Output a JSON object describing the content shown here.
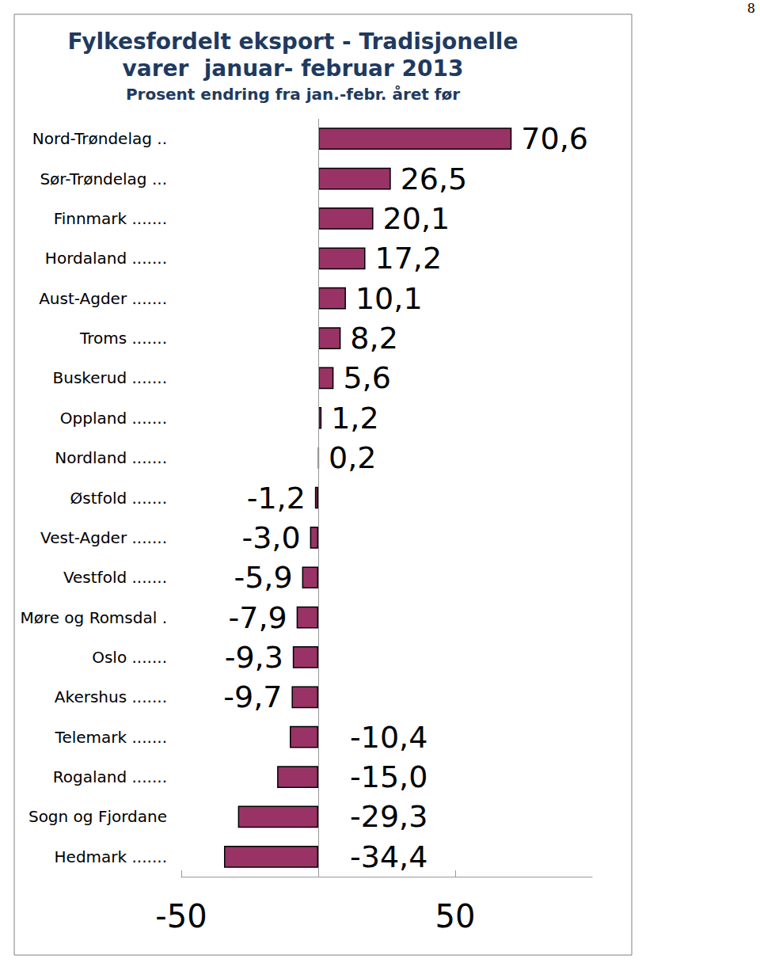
{
  "chart_data": {
    "type": "bar",
    "orientation": "horizontal",
    "title": "Fylkesfordelt eksport - Tradisjonelle\nvarer  januar- februar 2013",
    "subtitle": "Prosent endring fra jan.-febr. året før",
    "annotations": [
      "8"
    ],
    "categories": [
      "Nord-Trøndelag ..",
      "Sør-Trøndelag ...",
      "Finnmark .......",
      "Hordaland .......",
      "Aust-Agder .......",
      "Troms .......",
      "Buskerud .......",
      "Oppland .......",
      "Nordland .......",
      "Østfold .......",
      "Vest-Agder .......",
      "Vestfold .......",
      "Møre og Romsdal .",
      "Oslo .......",
      "Akershus .......",
      "Telemark .......",
      "Rogaland .......",
      "Sogn og Fjordane",
      "Hedmark ......."
    ],
    "values": [
      70.6,
      26.5,
      20.1,
      17.2,
      10.1,
      8.2,
      5.6,
      1.2,
      0.2,
      -1.2,
      -3.0,
      -5.9,
      -7.9,
      -9.3,
      -9.7,
      -10.4,
      -15.0,
      -29.3,
      -34.4
    ],
    "value_labels": [
      "70,6",
      "26,5",
      "20,1",
      "17,2",
      "10,1",
      "8,2",
      "5,6",
      "1,2",
      "0,2",
      "-1,2",
      "-3,0",
      "-5,9",
      "-7,9",
      "-9,3",
      "-9,7",
      "-10,4",
      "-15,0",
      "-29,3",
      "-34,4"
    ],
    "color": "#993366",
    "data_labels": true,
    "grid": false,
    "xlim": [
      -50,
      100
    ],
    "xticks": [
      -50,
      50
    ]
  }
}
